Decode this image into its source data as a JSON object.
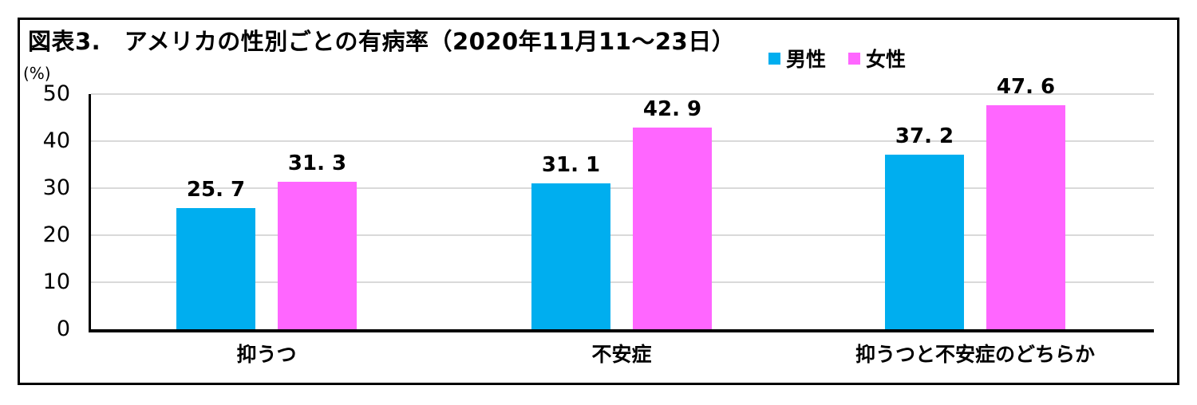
{
  "chart_data": {
    "type": "bar",
    "title": "図表3.　アメリカの性別ごとの有病率（2020年11月11～23日）",
    "unit_label": "(%)",
    "categories": [
      "抑うつ",
      "不安症",
      "抑うつと不安症のどちらか"
    ],
    "series": [
      {
        "name": "男性",
        "color": "#00AEEF",
        "values": [
          25.7,
          31.1,
          37.2
        ],
        "value_labels": [
          "25. 7",
          "31. 1",
          "37. 2"
        ]
      },
      {
        "name": "女性",
        "color": "#FF66FF",
        "values": [
          31.3,
          42.9,
          47.6
        ],
        "value_labels": [
          "31. 3",
          "42. 9",
          "47. 6"
        ]
      }
    ],
    "ylim": [
      0,
      50
    ],
    "yticks": [
      0,
      10,
      20,
      30,
      40,
      50
    ],
    "grid": true,
    "legend_position": "top-right",
    "colors": {
      "grid": "#D9D9D9",
      "axis": "#000000",
      "text": "#000000",
      "frame_border": "#000000",
      "background": "#FFFFFF"
    }
  }
}
